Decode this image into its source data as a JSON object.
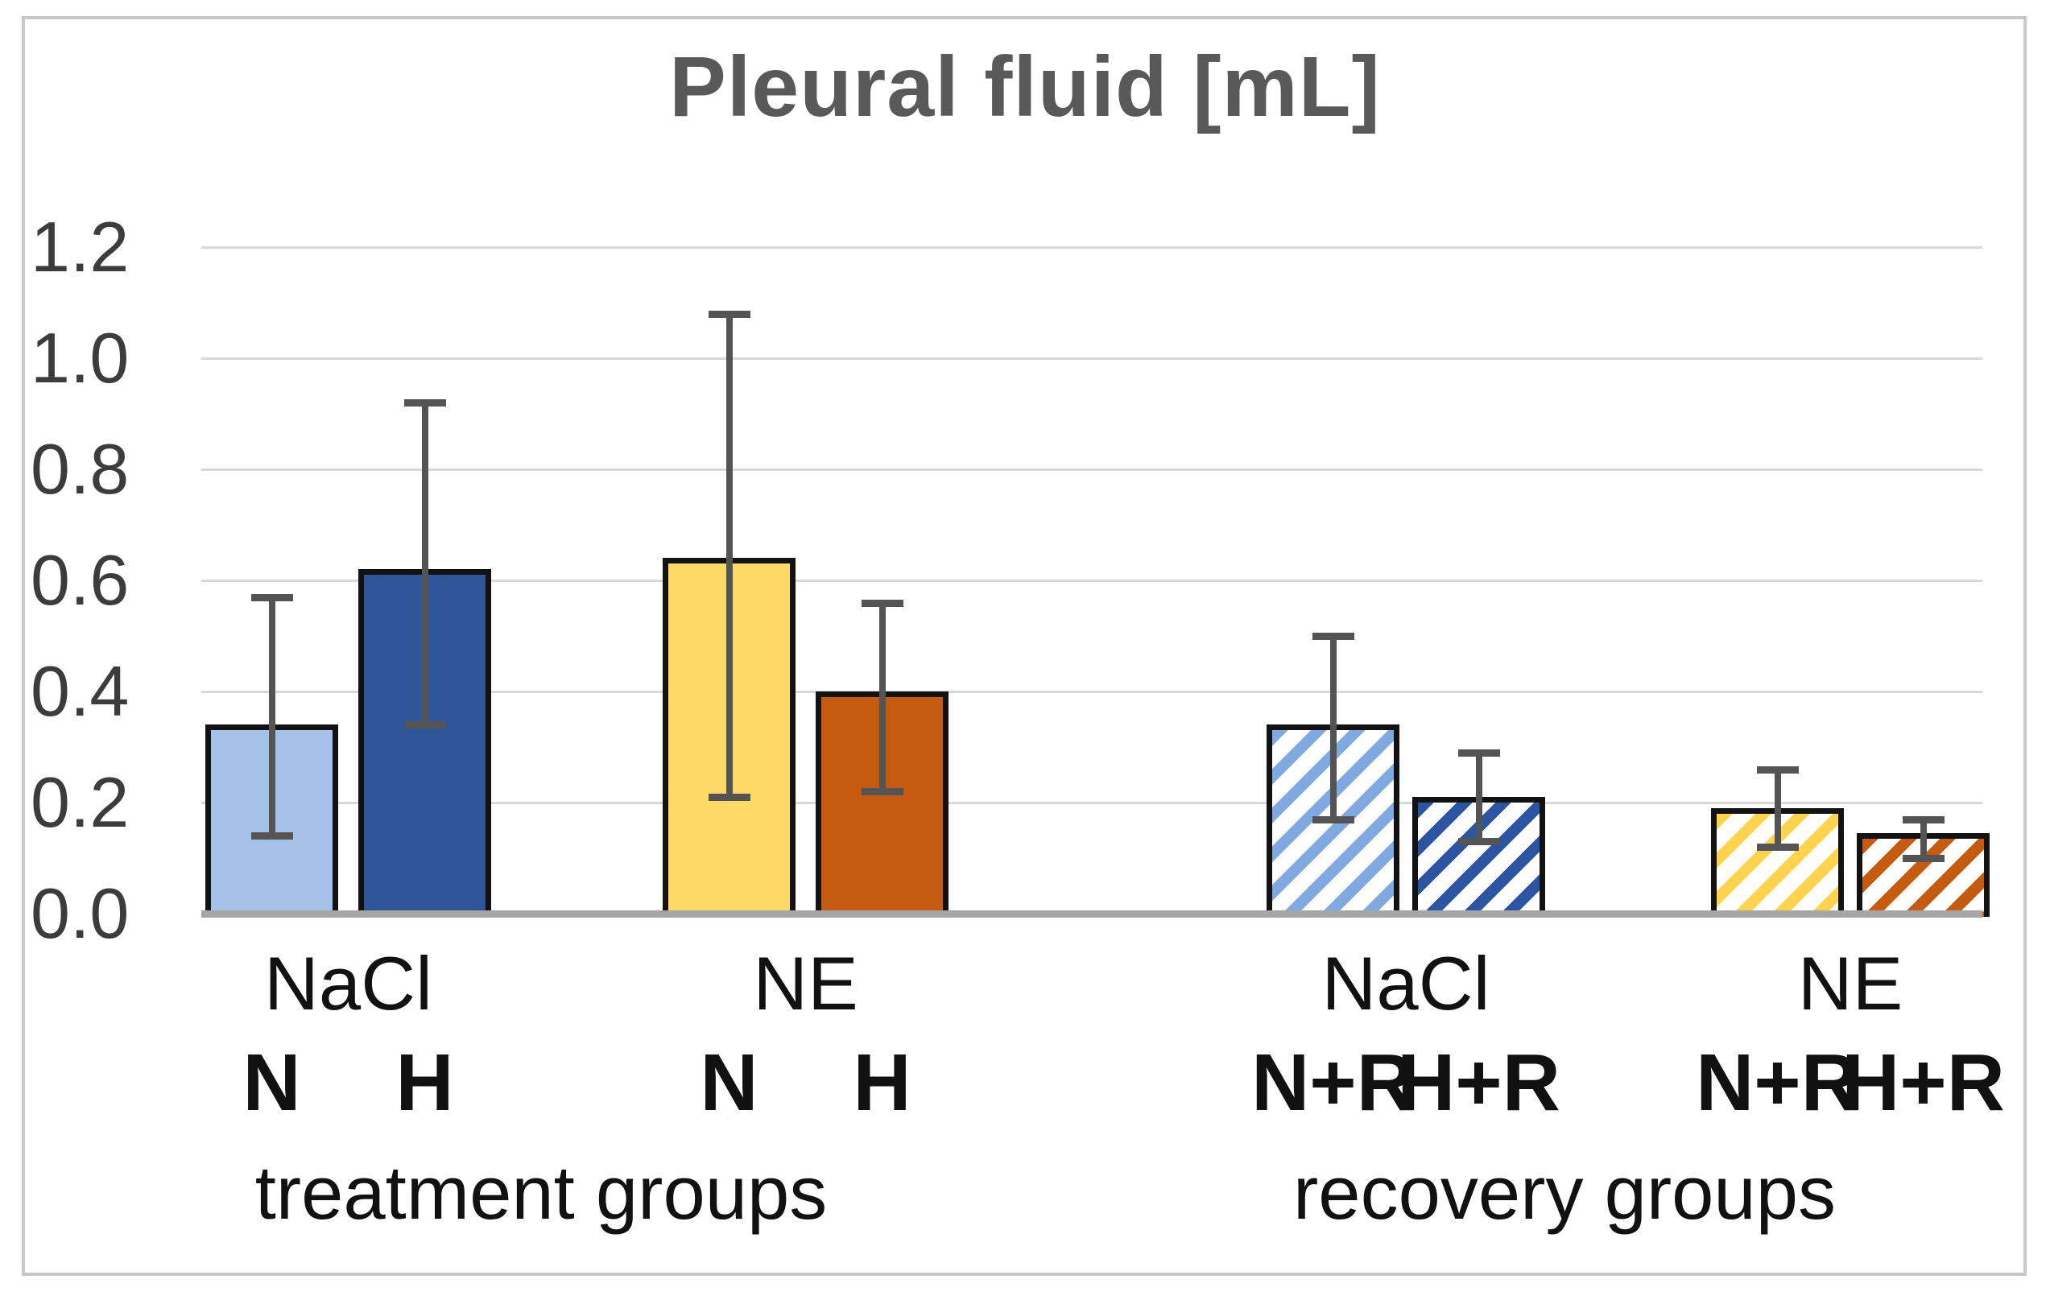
{
  "chart_data": {
    "type": "bar",
    "title": "Pleural fluid [mL]",
    "xlabel": "",
    "ylabel": "",
    "ylim": [
      0.0,
      1.2
    ],
    "yticks": [
      0,
      0.2,
      0.4,
      0.6,
      0.8,
      1.0,
      1.2
    ],
    "ytick_labels": [
      "0.0",
      "0.2",
      "0.4",
      "0.6",
      "0.8",
      "1.0",
      "1.2"
    ],
    "grid": true,
    "legend_position": "none",
    "sections": [
      {
        "label": "treatment groups",
        "clusters": [
          {
            "label": "NaCl",
            "bars": [
              {
                "label": "N",
                "value": 0.34,
                "err_low": 0.14,
                "err_high": 0.57,
                "pattern": "solid",
                "color": "#A4C2E8"
              },
              {
                "label": "H",
                "value": 0.62,
                "err_low": 0.34,
                "err_high": 0.92,
                "pattern": "solid",
                "color": "#2E5597"
              }
            ]
          },
          {
            "label": "NE",
            "bars": [
              {
                "label": "N",
                "value": 0.64,
                "err_low": 0.21,
                "err_high": 1.08,
                "pattern": "solid",
                "color": "#FFD965"
              },
              {
                "label": "H",
                "value": 0.4,
                "err_low": 0.22,
                "err_high": 0.56,
                "pattern": "solid",
                "color": "#C55A11"
              }
            ]
          }
        ]
      },
      {
        "label": "recovery groups",
        "clusters": [
          {
            "label": "NaCl",
            "bars": [
              {
                "label": "N+R",
                "value": 0.34,
                "err_low": 0.17,
                "err_high": 0.5,
                "pattern": "hatched",
                "color": "#7FA9DF"
              },
              {
                "label": "H+R",
                "value": 0.21,
                "err_low": 0.13,
                "err_high": 0.29,
                "pattern": "hatched",
                "color": "#2B55A0"
              }
            ]
          },
          {
            "label": "NE",
            "bars": [
              {
                "label": "N+R",
                "value": 0.19,
                "err_low": 0.12,
                "err_high": 0.26,
                "pattern": "hatched",
                "color": "#FFD34D"
              },
              {
                "label": "H+R",
                "value": 0.145,
                "err_low": 0.1,
                "err_high": 0.17,
                "pattern": "hatched",
                "color": "#C55A11"
              }
            ]
          }
        ]
      }
    ],
    "style": {
      "title_color": "#595959",
      "tick_label_color": "#3c3c3c",
      "category_label_color": "#111111",
      "gridline_color": "#d9d9d9",
      "axis_line_color": "#a6a6a6",
      "error_bar_color": "#545454",
      "bar_border_color": "#121212",
      "frame_border_color": "#c7c7c7",
      "background": "#ffffff"
    }
  }
}
